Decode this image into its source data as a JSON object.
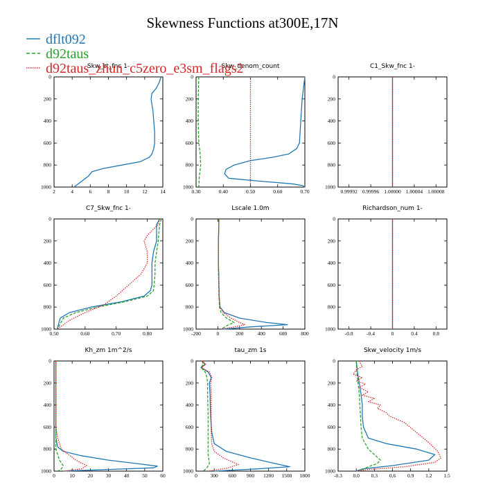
{
  "figure": {
    "title": "Skewness Functions at300E,17N",
    "legend": [
      {
        "label": "dflt092",
        "color": "#1f77b4"
      },
      {
        "label": "d92taus",
        "color": "#2ca02c"
      },
      {
        "label": "d92taus_zhun_c5zero_e3sm_flags2",
        "color": "#d62728"
      }
    ]
  },
  "chart_data": [
    {
      "type": "line",
      "title": "Skw_zt_fnc  1-",
      "xlim": [
        2,
        14
      ],
      "xticks": [
        "2",
        "4",
        "6",
        "8",
        "10",
        "12",
        "14"
      ],
      "ylim": [
        1000,
        0
      ],
      "yticks": [
        "0",
        "200",
        "400",
        "600",
        "800",
        "1000"
      ],
      "series": [
        {
          "name": "dflt092",
          "color": "#1f77b4",
          "style": "solid",
          "x": [
            13.8,
            13.6,
            13.3,
            12.8,
            12.7,
            12.9,
            13.0,
            13.1,
            13.1,
            13.0,
            12.8,
            12.5,
            11.5,
            9.5,
            7.5,
            6.2,
            5.8,
            5.0,
            4.2
          ],
          "y": [
            0,
            50,
            100,
            150,
            200,
            300,
            400,
            500,
            600,
            650,
            700,
            730,
            770,
            800,
            830,
            860,
            900,
            950,
            1000
          ]
        }
      ]
    },
    {
      "type": "line",
      "title": "Skw_denom_count",
      "xlim": [
        0.3,
        0.7
      ],
      "xticks": [
        "0.30",
        "0.40",
        "0.50",
        "0.60",
        "0.70"
      ],
      "ylim": [
        1000,
        0
      ],
      "yticks": [
        "0",
        "200",
        "400",
        "600",
        "800",
        "1000"
      ],
      "series": [
        {
          "name": "dflt092",
          "color": "#1f77b4",
          "style": "solid",
          "x": [
            0.7,
            0.695,
            0.69,
            0.685,
            0.68,
            0.67,
            0.64,
            0.58,
            0.5,
            0.44,
            0.41,
            0.405,
            0.42,
            0.55,
            0.65,
            0.69,
            0.7
          ],
          "y": [
            0,
            100,
            200,
            400,
            600,
            650,
            700,
            730,
            760,
            800,
            840,
            880,
            920,
            950,
            970,
            985,
            1000
          ]
        },
        {
          "name": "d92taus",
          "color": "#2ca02c",
          "style": "dashed",
          "x": [
            0.31,
            0.309,
            0.308,
            0.308,
            0.31,
            0.315,
            0.317,
            0.312,
            0.31
          ],
          "y": [
            0,
            100,
            200,
            400,
            600,
            700,
            800,
            900,
            1000
          ]
        },
        {
          "name": "d92taus_zhun_c5zero_e3sm_flags2",
          "color": "#d62728",
          "style": "dotted",
          "x": [
            0.5,
            0.5
          ],
          "y": [
            0,
            1000
          ]
        }
      ]
    },
    {
      "type": "line",
      "title": "C1_Skw_fnc  1-",
      "xlim": [
        0.9999,
        1.0001
      ],
      "xticks": [
        "0.99992",
        "0.99996",
        "1.00000",
        "1.00004",
        "1.00008"
      ],
      "ylim": [
        1000,
        0
      ],
      "yticks": [
        "0",
        "200",
        "400",
        "600",
        "800",
        "1000"
      ],
      "series": [
        {
          "name": "dflt092",
          "color": "#1f77b4",
          "style": "solid",
          "x": [
            1.0,
            1.0
          ],
          "y": [
            0,
            1000
          ]
        },
        {
          "name": "d92taus_zhun_c5zero_e3sm_flags2",
          "color": "#d62728",
          "style": "dotted",
          "x": [
            1.0,
            1.0
          ],
          "y": [
            0,
            1000
          ]
        }
      ]
    },
    {
      "type": "line",
      "title": "C7_Skw_fnc  1-",
      "xlim": [
        0.5,
        0.85
      ],
      "xticks": [
        "0.50",
        "0.60",
        "0.70",
        "0.80"
      ],
      "ylim": [
        1000,
        0
      ],
      "yticks": [
        "0",
        "200",
        "400",
        "600",
        "800",
        "1000"
      ],
      "series": [
        {
          "name": "dflt092",
          "color": "#1f77b4",
          "style": "solid",
          "x": [
            0.84,
            0.83,
            0.83,
            0.83,
            0.82,
            0.815,
            0.815,
            0.815,
            0.81,
            0.79,
            0.72,
            0.62,
            0.55,
            0.52,
            0.51
          ],
          "y": [
            0,
            50,
            100,
            200,
            300,
            400,
            500,
            600,
            650,
            700,
            750,
            800,
            850,
            900,
            1000
          ]
        },
        {
          "name": "d92taus",
          "color": "#2ca02c",
          "style": "dashed",
          "x": [
            0.845,
            0.84,
            0.838,
            0.835,
            0.83,
            0.825,
            0.825,
            0.822,
            0.82,
            0.8,
            0.73,
            0.64,
            0.57,
            0.53,
            0.51
          ],
          "y": [
            0,
            50,
            100,
            200,
            300,
            400,
            500,
            600,
            650,
            700,
            750,
            800,
            850,
            900,
            1000
          ]
        },
        {
          "name": "d92taus_zhun_c5zero_e3sm_flags2",
          "color": "#d62728",
          "style": "dotted",
          "x": [
            0.84,
            0.835,
            0.8,
            0.79,
            0.8,
            0.8,
            0.78,
            0.74,
            0.7,
            0.66,
            0.6,
            0.55,
            0.51
          ],
          "y": [
            0,
            50,
            150,
            200,
            300,
            400,
            500,
            600,
            700,
            780,
            850,
            920,
            1000
          ]
        }
      ]
    },
    {
      "type": "line",
      "title": "Lscale  1.0m",
      "xlim": [
        -200,
        800
      ],
      "xticks": [
        "-200",
        "0",
        "200",
        "400",
        "600",
        "800"
      ],
      "ylim": [
        1000,
        0
      ],
      "yticks": [
        "0",
        "200",
        "400",
        "600",
        "800",
        "1000"
      ],
      "series": [
        {
          "name": "dflt092",
          "color": "#1f77b4",
          "style": "solid",
          "x": [
            10,
            8,
            5,
            5,
            8,
            10,
            12,
            20,
            60,
            200,
            450,
            640,
            300,
            50
          ],
          "y": [
            0,
            100,
            200,
            400,
            500,
            600,
            700,
            800,
            850,
            900,
            940,
            960,
            980,
            1000
          ]
        },
        {
          "name": "d92taus",
          "color": "#2ca02c",
          "style": "dashed",
          "x": [
            10,
            8,
            5,
            5,
            6,
            8,
            10,
            15,
            30,
            80,
            150,
            100,
            30
          ],
          "y": [
            0,
            100,
            200,
            400,
            500,
            600,
            700,
            800,
            850,
            900,
            940,
            960,
            1000
          ]
        },
        {
          "name": "d92taus_zhun_c5zero_e3sm_flags2",
          "color": "#d62728",
          "style": "dotted",
          "x": [
            10,
            8,
            5,
            5,
            8,
            10,
            12,
            20,
            50,
            120,
            200,
            250,
            150,
            30
          ],
          "y": [
            0,
            100,
            200,
            400,
            500,
            600,
            700,
            800,
            850,
            900,
            940,
            960,
            980,
            1000
          ]
        }
      ]
    },
    {
      "type": "line",
      "title": "Richardson_num  1-",
      "xlim": [
        -1.0,
        1.0
      ],
      "xticks": [
        "-0.8",
        "-0.4",
        "0",
        "0.4",
        "0.8"
      ],
      "ylim": [
        1000,
        0
      ],
      "yticks": [
        "0",
        "200",
        "400",
        "600",
        "800",
        "1000"
      ],
      "series": [
        {
          "name": "dflt092",
          "color": "#1f77b4",
          "style": "solid",
          "x": [
            0,
            0
          ],
          "y": [
            0,
            1000
          ]
        },
        {
          "name": "d92taus_zhun_c5zero_e3sm_flags2",
          "color": "#d62728",
          "style": "dotted",
          "x": [
            0,
            0
          ],
          "y": [
            0,
            1000
          ]
        }
      ]
    },
    {
      "type": "line",
      "title": "Kh_zm  1m^2/s",
      "xlim": [
        0,
        60
      ],
      "xticks": [
        "0",
        "10",
        "20",
        "30",
        "40",
        "50",
        "60"
      ],
      "ylim": [
        1000,
        0
      ],
      "yticks": [
        "0",
        "200",
        "400",
        "600",
        "800",
        "1000"
      ],
      "series": [
        {
          "name": "dflt092",
          "color": "#1f77b4",
          "style": "solid",
          "x": [
            1,
            1,
            1,
            1,
            1,
            1,
            2,
            5,
            15,
            30,
            45,
            57,
            55,
            30,
            5
          ],
          "y": [
            0,
            100,
            200,
            400,
            600,
            700,
            780,
            820,
            860,
            900,
            930,
            955,
            970,
            985,
            1000
          ]
        },
        {
          "name": "d92taus",
          "color": "#2ca02c",
          "style": "dashed",
          "x": [
            1,
            1,
            1,
            1,
            1,
            1,
            1,
            2,
            3,
            5,
            4,
            2
          ],
          "y": [
            0,
            100,
            200,
            400,
            600,
            700,
            800,
            850,
            900,
            950,
            980,
            1000
          ]
        },
        {
          "name": "d92taus_zhun_c5zero_e3sm_flags2",
          "color": "#d62728",
          "style": "dotted",
          "x": [
            1,
            1,
            1,
            1,
            1,
            2,
            4,
            8,
            12,
            18,
            15,
            5
          ],
          "y": [
            0,
            100,
            200,
            400,
            600,
            700,
            800,
            850,
            900,
            950,
            980,
            1000
          ]
        }
      ]
    },
    {
      "type": "line",
      "title": "tau_zm  1s",
      "xlim": [
        0,
        1800
      ],
      "xticks": [
        "0",
        "300",
        "600",
        "900",
        "1200",
        "1500",
        "1800"
      ],
      "ylim": [
        1000,
        0
      ],
      "yticks": [
        "0",
        "200",
        "400",
        "600",
        "800",
        "1000"
      ],
      "series": [
        {
          "name": "dflt092",
          "color": "#1f77b4",
          "style": "solid",
          "x": [
            100,
            150,
            80,
            200,
            250,
            220,
            230,
            240,
            260,
            300,
            500,
            900,
            1300,
            1550,
            1000,
            300
          ],
          "y": [
            0,
            30,
            60,
            100,
            150,
            200,
            300,
            500,
            650,
            750,
            820,
            880,
            930,
            960,
            980,
            1000
          ]
        },
        {
          "name": "d92taus",
          "color": "#2ca02c",
          "style": "dashed",
          "x": [
            100,
            120,
            80,
            150,
            180,
            190,
            190,
            200,
            200,
            200,
            200,
            220,
            180,
            120
          ],
          "y": [
            0,
            30,
            60,
            100,
            150,
            200,
            300,
            500,
            650,
            750,
            850,
            930,
            970,
            1000
          ]
        },
        {
          "name": "d92taus_zhun_c5zero_e3sm_flags2",
          "color": "#d62728",
          "style": "dotted",
          "x": [
            100,
            160,
            90,
            220,
            260,
            240,
            250,
            250,
            250,
            260,
            300,
            450,
            700,
            500,
            200
          ],
          "y": [
            0,
            30,
            60,
            100,
            150,
            200,
            300,
            500,
            650,
            750,
            820,
            880,
            940,
            975,
            1000
          ]
        }
      ]
    },
    {
      "type": "line",
      "title": "Skw_velocity  1m/s",
      "xlim": [
        -0.3,
        1.5
      ],
      "xticks": [
        "-0.3",
        "0.0",
        "0.3",
        "0.6",
        "0.9",
        "1.2",
        "1.5"
      ],
      "ylim": [
        1000,
        0
      ],
      "yticks": [
        "0",
        "200",
        "400",
        "600",
        "800",
        "1000"
      ],
      "series": [
        {
          "name": "dflt092",
          "color": "#1f77b4",
          "style": "solid",
          "x": [
            0.0,
            0.02,
            0.05,
            0.08,
            0.1,
            0.1,
            0.12,
            0.2,
            0.5,
            1.0,
            1.3,
            1.2,
            0.6,
            0.1,
            0.0
          ],
          "y": [
            0,
            100,
            200,
            300,
            400,
            500,
            600,
            700,
            750,
            800,
            850,
            900,
            950,
            980,
            1000
          ]
        },
        {
          "name": "d92taus",
          "color": "#2ca02c",
          "style": "dashed",
          "x": [
            0.0,
            0.01,
            0.03,
            0.05,
            0.06,
            0.07,
            0.08,
            0.1,
            0.2,
            0.4,
            0.35,
            0.2,
            0.05
          ],
          "y": [
            0,
            100,
            200,
            300,
            400,
            500,
            600,
            700,
            800,
            900,
            930,
            960,
            1000
          ]
        },
        {
          "name": "d92taus_zhun_c5zero_e3sm_flags2",
          "color": "#d62728",
          "style": "dotted",
          "x": [
            0.05,
            0.1,
            0.0,
            -0.05,
            0.1,
            0.0,
            0.15,
            0.05,
            0.2,
            0.1,
            0.3,
            0.2,
            0.4,
            0.35,
            0.5,
            0.55,
            0.8,
            1.0,
            1.2,
            1.35,
            1.4,
            1.3,
            0.8,
            0.2,
            0.0
          ],
          "y": [
            0,
            50,
            80,
            120,
            150,
            180,
            210,
            240,
            280,
            310,
            340,
            370,
            400,
            430,
            470,
            500,
            560,
            650,
            740,
            820,
            880,
            920,
            960,
            985,
            1000
          ]
        }
      ]
    }
  ]
}
